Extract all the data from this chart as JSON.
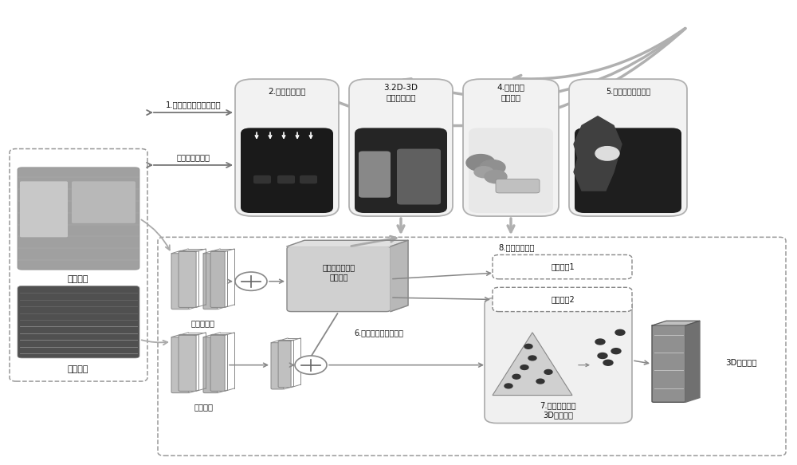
{
  "bg_color": "#ffffff",
  "gray_arrow": "#aaaaaa",
  "dark_arrow": "#888888",
  "box_light": "#f0f0f0",
  "box_mid": "#d8d8d8",
  "box_dark": "#999999",
  "dashed_color": "#999999",
  "text_dark": "#111111",
  "label_1": "1.不确定性双目深度估计",
  "label_pre": "预训练分割模型",
  "label_2": "2.边缘校准技术",
  "label_3a": "3.2D-3D",
  "label_3b": "无据信息转化",
  "label_4a": "4.目标中心",
  "label_4b": "数据增强",
  "label_5": "5.场景关联损失函数",
  "label_pseudo": "伪点云网络",
  "label_pc": "点云网络",
  "label_stack": "堆叠可形变卷积\n校准模块",
  "label_6": "6.由粗到细的深度对齐",
  "label_8": "8.多分支监督流",
  "label_b1": "监督分支1",
  "label_b2": "监督分支2",
  "label_7a": "7.体素转化为点",
  "label_7b": "3D空间聚合",
  "label_result": "3D检测结果",
  "label_binocular": "双目图像",
  "label_lidar": "激光雷达"
}
